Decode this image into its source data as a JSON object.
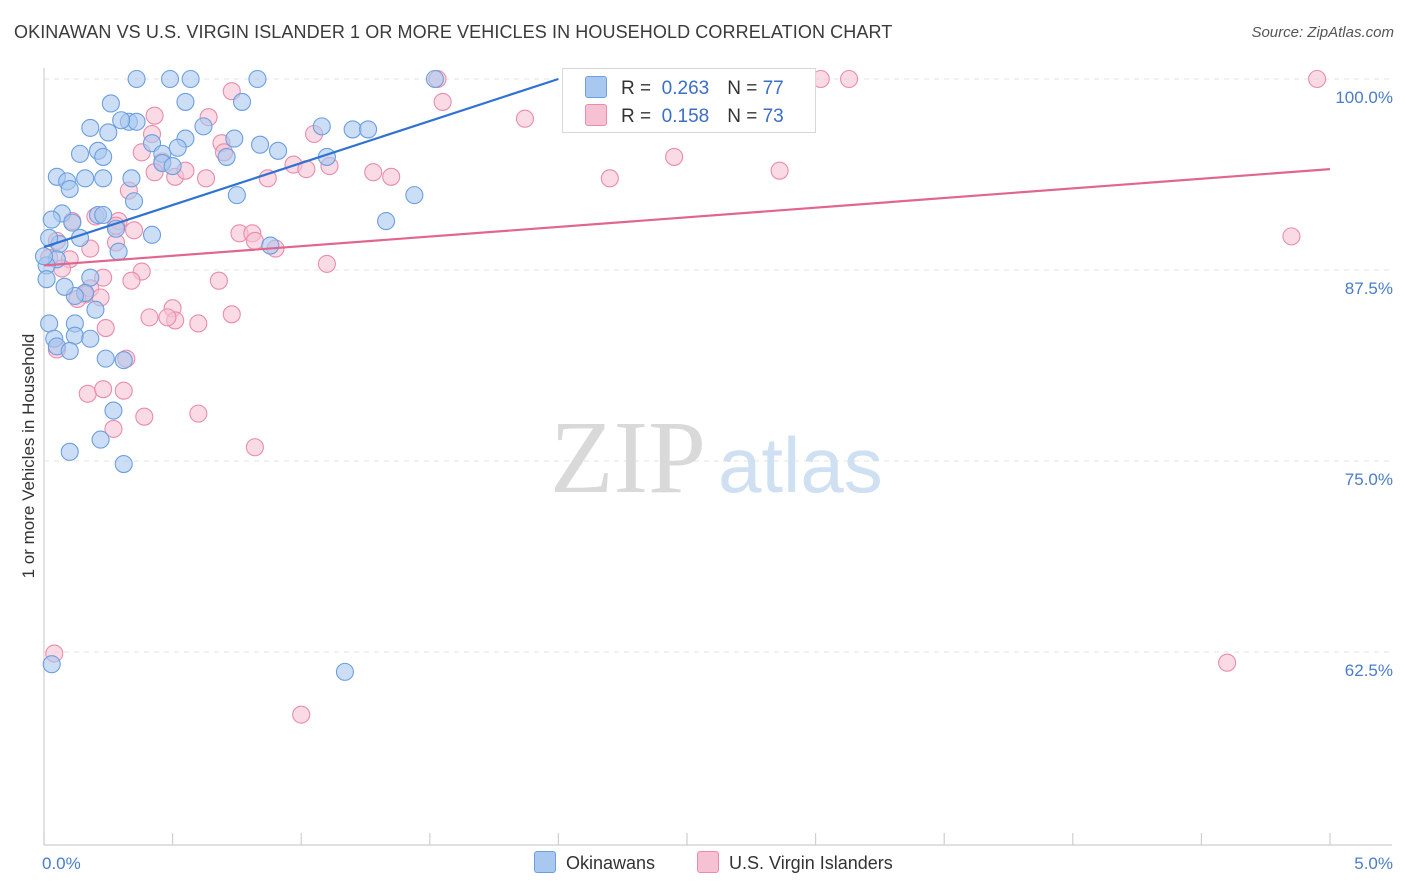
{
  "title": "OKINAWAN VS U.S. VIRGIN ISLANDER 1 OR MORE VEHICLES IN HOUSEHOLD CORRELATION CHART",
  "source": "Source: ZipAtlas.com",
  "watermark": {
    "zip": "ZIP",
    "atlas": "atlas"
  },
  "colors": {
    "blue_fill": "#a9c8ef",
    "blue_stroke": "#6b9fe0",
    "blue_line": "#2e72d2",
    "pink_fill": "#f6c1d2",
    "pink_stroke": "#e98cab",
    "pink_line": "#e0668f",
    "tick_text": "#4a7cc9",
    "grid": "#e3e3e3"
  },
  "legend": {
    "rows": [
      {
        "r_label": "R =",
        "r_value": "0.263",
        "n_label": "N =",
        "n_value": "77"
      },
      {
        "r_label": "R =",
        "r_value": "0.158",
        "n_label": "N =",
        "n_value": "73"
      }
    ]
  },
  "bottom_legend": {
    "series1": "Okinawans",
    "series2": "U.S. Virgin Islanders"
  },
  "chart_data": {
    "type": "scatter",
    "title": "OKINAWAN VS U.S. VIRGIN ISLANDER 1 OR MORE VEHICLES IN HOUSEHOLD CORRELATION CHART",
    "xlabel": "",
    "ylabel": "1 or more Vehicles in Household",
    "xlim": [
      0.0,
      5.0
    ],
    "ylim": [
      51.0,
      101.0
    ],
    "x_tick_labels": [
      {
        "value": 0.0,
        "label": "0.0%"
      },
      {
        "value": 5.0,
        "label": "5.0%"
      }
    ],
    "y_ticks": [
      {
        "value": 100.0,
        "label": "100.0%"
      },
      {
        "value": 87.5,
        "label": "87.5%"
      },
      {
        "value": 75.0,
        "label": "75.0%"
      },
      {
        "value": 62.5,
        "label": "62.5%"
      }
    ],
    "grid": true,
    "series": [
      {
        "name": "Okinawans",
        "color": "#a9c8ef",
        "r": 0.263,
        "n": 77,
        "trend": {
          "x0": 0.0,
          "y0": 89.0,
          "x1": 2.0,
          "y1": 100.0
        },
        "points": [
          [
            0.36,
            100.0
          ],
          [
            0.49,
            100.0
          ],
          [
            0.57,
            100.0
          ],
          [
            0.83,
            100.0
          ],
          [
            1.52,
            100.0
          ],
          [
            0.26,
            98.4
          ],
          [
            0.55,
            98.5
          ],
          [
            0.77,
            98.5
          ],
          [
            0.33,
            97.2
          ],
          [
            0.36,
            97.2
          ],
          [
            0.3,
            97.3
          ],
          [
            0.18,
            96.8
          ],
          [
            0.25,
            96.5
          ],
          [
            0.62,
            96.9
          ],
          [
            0.74,
            96.1
          ],
          [
            1.08,
            96.9
          ],
          [
            1.2,
            96.7
          ],
          [
            1.26,
            96.7
          ],
          [
            0.55,
            96.1
          ],
          [
            0.42,
            95.8
          ],
          [
            0.21,
            95.3
          ],
          [
            0.14,
            95.1
          ],
          [
            0.23,
            94.9
          ],
          [
            0.46,
            95.1
          ],
          [
            0.52,
            95.5
          ],
          [
            0.71,
            94.9
          ],
          [
            0.84,
            95.7
          ],
          [
            0.91,
            95.3
          ],
          [
            1.1,
            94.9
          ],
          [
            0.46,
            94.5
          ],
          [
            0.5,
            94.3
          ],
          [
            0.05,
            93.6
          ],
          [
            0.16,
            93.5
          ],
          [
            0.09,
            93.3
          ],
          [
            0.23,
            93.5
          ],
          [
            0.34,
            93.5
          ],
          [
            0.1,
            92.8
          ],
          [
            0.75,
            92.4
          ],
          [
            1.44,
            92.4
          ],
          [
            0.35,
            92.0
          ],
          [
            0.07,
            91.2
          ],
          [
            0.21,
            91.1
          ],
          [
            0.23,
            91.1
          ],
          [
            0.03,
            90.8
          ],
          [
            0.11,
            90.6
          ],
          [
            1.33,
            90.7
          ],
          [
            0.28,
            90.2
          ],
          [
            0.42,
            89.8
          ],
          [
            0.14,
            89.6
          ],
          [
            0.06,
            89.2
          ],
          [
            0.88,
            89.1
          ],
          [
            0.29,
            88.7
          ],
          [
            0.05,
            88.2
          ],
          [
            0.01,
            87.8
          ],
          [
            0.18,
            87.0
          ],
          [
            0.01,
            86.9
          ],
          [
            0.16,
            86.0
          ],
          [
            0.12,
            85.8
          ],
          [
            0.02,
            84.0
          ],
          [
            0.12,
            84.0
          ],
          [
            0.04,
            83.0
          ],
          [
            0.12,
            83.2
          ],
          [
            0.18,
            83.0
          ],
          [
            0.05,
            82.5
          ],
          [
            0.1,
            82.2
          ],
          [
            0.24,
            81.7
          ],
          [
            0.31,
            81.6
          ],
          [
            0.27,
            78.3
          ],
          [
            0.22,
            76.4
          ],
          [
            0.1,
            75.6
          ],
          [
            0.31,
            74.8
          ],
          [
            0.03,
            61.7
          ],
          [
            1.17,
            61.2
          ],
          [
            0.0,
            88.4
          ],
          [
            0.02,
            89.6
          ],
          [
            0.08,
            86.4
          ],
          [
            0.2,
            84.9
          ]
        ]
      },
      {
        "name": "U.S. Virgin Islanders",
        "color": "#f6c1d2",
        "r": 0.158,
        "n": 73,
        "trend": {
          "x0": 0.0,
          "y0": 87.8,
          "x1": 5.0,
          "y1": 94.1
        },
        "points": [
          [
            1.53,
            100.0
          ],
          [
            3.02,
            100.0
          ],
          [
            3.13,
            100.0
          ],
          [
            4.95,
            100.0
          ],
          [
            0.73,
            99.2
          ],
          [
            1.55,
            98.5
          ],
          [
            1.87,
            97.4
          ],
          [
            0.43,
            97.6
          ],
          [
            0.42,
            96.4
          ],
          [
            1.05,
            96.4
          ],
          [
            0.64,
            97.5
          ],
          [
            0.69,
            95.8
          ],
          [
            0.38,
            95.2
          ],
          [
            0.46,
            94.6
          ],
          [
            0.7,
            95.2
          ],
          [
            2.45,
            94.9
          ],
          [
            0.97,
            94.4
          ],
          [
            1.02,
            94.1
          ],
          [
            1.11,
            94.3
          ],
          [
            0.43,
            93.9
          ],
          [
            0.51,
            93.6
          ],
          [
            1.28,
            93.9
          ],
          [
            1.35,
            93.6
          ],
          [
            0.87,
            93.5
          ],
          [
            0.55,
            94.0
          ],
          [
            0.63,
            93.5
          ],
          [
            2.2,
            93.5
          ],
          [
            2.86,
            94.0
          ],
          [
            0.33,
            92.7
          ],
          [
            0.2,
            91.0
          ],
          [
            0.11,
            90.7
          ],
          [
            0.29,
            90.7
          ],
          [
            0.28,
            90.4
          ],
          [
            0.35,
            90.1
          ],
          [
            0.76,
            89.9
          ],
          [
            0.81,
            89.9
          ],
          [
            0.05,
            89.4
          ],
          [
            0.18,
            88.9
          ],
          [
            0.28,
            89.3
          ],
          [
            0.82,
            89.4
          ],
          [
            0.9,
            88.9
          ],
          [
            4.85,
            89.7
          ],
          [
            0.1,
            88.2
          ],
          [
            0.07,
            87.6
          ],
          [
            0.38,
            87.4
          ],
          [
            1.1,
            87.9
          ],
          [
            0.18,
            86.3
          ],
          [
            0.23,
            87.0
          ],
          [
            0.34,
            86.8
          ],
          [
            0.68,
            86.8
          ],
          [
            0.16,
            85.9
          ],
          [
            0.22,
            85.7
          ],
          [
            0.5,
            85.0
          ],
          [
            0.41,
            84.4
          ],
          [
            0.51,
            84.2
          ],
          [
            0.48,
            84.4
          ],
          [
            0.6,
            84.0
          ],
          [
            0.73,
            84.6
          ],
          [
            0.05,
            82.3
          ],
          [
            0.32,
            81.7
          ],
          [
            0.17,
            79.4
          ],
          [
            0.23,
            79.7
          ],
          [
            0.31,
            79.6
          ],
          [
            0.27,
            77.1
          ],
          [
            0.39,
            77.9
          ],
          [
            0.6,
            78.1
          ],
          [
            0.82,
            75.9
          ],
          [
            0.04,
            62.4
          ],
          [
            4.6,
            61.8
          ],
          [
            1.0,
            58.4
          ],
          [
            0.02,
            88.3
          ],
          [
            0.13,
            85.6
          ],
          [
            0.24,
            83.7
          ]
        ]
      }
    ]
  }
}
